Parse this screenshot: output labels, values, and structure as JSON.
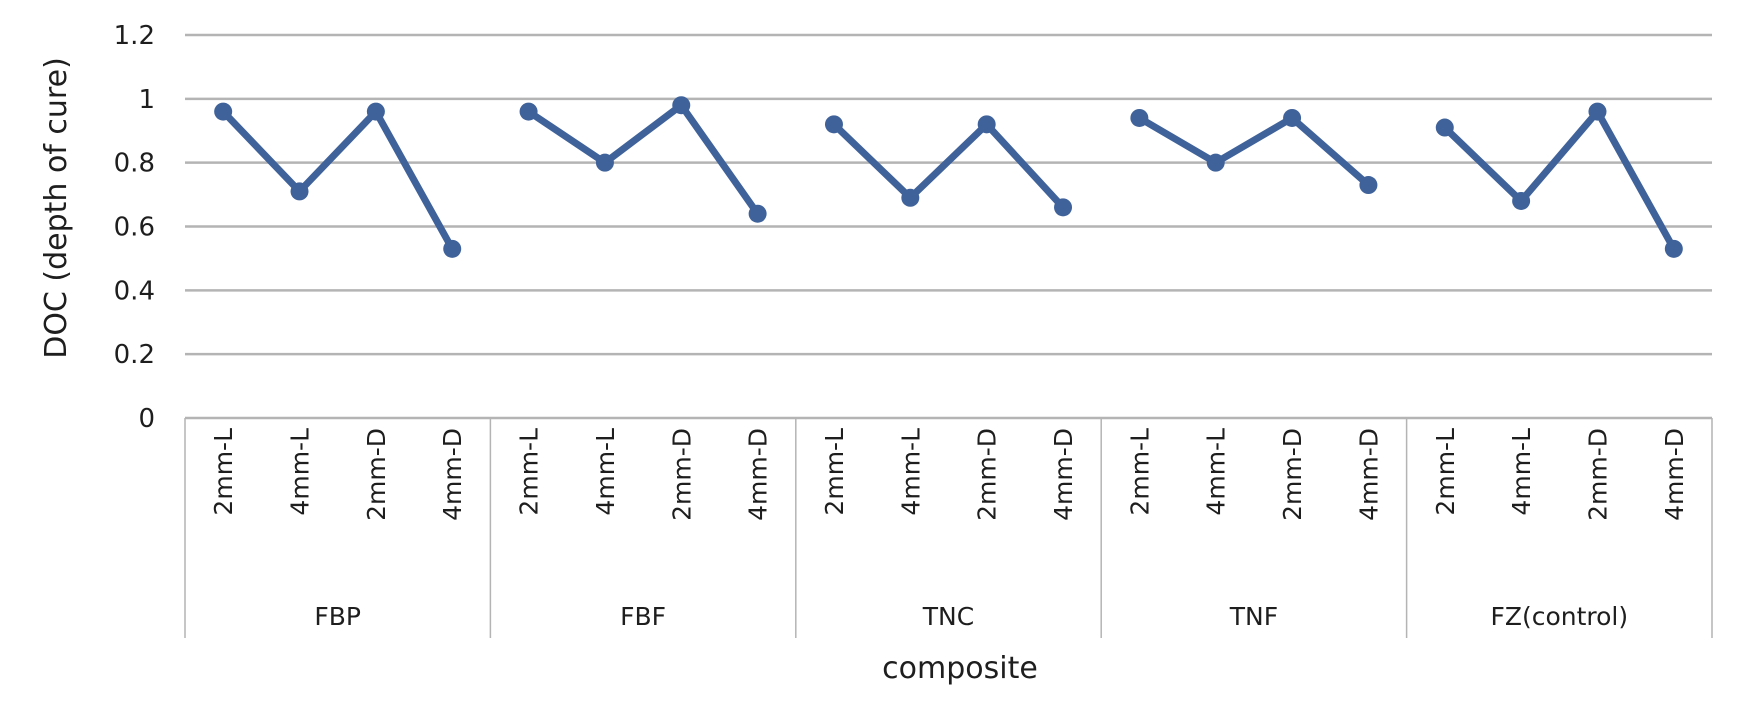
{
  "chart_data": {
    "type": "line",
    "title": "",
    "xlabel": "composite",
    "ylabel": "DOC (depth of cure)",
    "ylim": [
      0,
      1.2
    ],
    "yticks": [
      "0",
      "0.2",
      "0.4",
      "0.6",
      "0.8",
      "1",
      "1.2"
    ],
    "grid": true,
    "legend": "none",
    "line_color": "#3f629a",
    "groups": [
      {
        "name": "FBP",
        "categories": [
          "2mm-L",
          "4mm-L",
          "2mm-D",
          "4mm-D"
        ],
        "values": [
          0.96,
          0.71,
          0.96,
          0.53
        ]
      },
      {
        "name": "FBF",
        "categories": [
          "2mm-L",
          "4mm-L",
          "2mm-D",
          "4mm-D"
        ],
        "values": [
          0.96,
          0.8,
          0.98,
          0.64
        ]
      },
      {
        "name": "TNC",
        "categories": [
          "2mm-L",
          "4mm-L",
          "2mm-D",
          "4mm-D"
        ],
        "values": [
          0.92,
          0.69,
          0.92,
          0.66
        ]
      },
      {
        "name": "TNF",
        "categories": [
          "2mm-L",
          "4mm-L",
          "2mm-D",
          "4mm-D"
        ],
        "values": [
          0.94,
          0.8,
          0.94,
          0.73
        ]
      },
      {
        "name": "FZ(control)",
        "categories": [
          "2mm-L",
          "4mm-L",
          "2mm-D",
          "4mm-D"
        ],
        "values": [
          0.91,
          0.68,
          0.96,
          0.53
        ]
      }
    ]
  }
}
